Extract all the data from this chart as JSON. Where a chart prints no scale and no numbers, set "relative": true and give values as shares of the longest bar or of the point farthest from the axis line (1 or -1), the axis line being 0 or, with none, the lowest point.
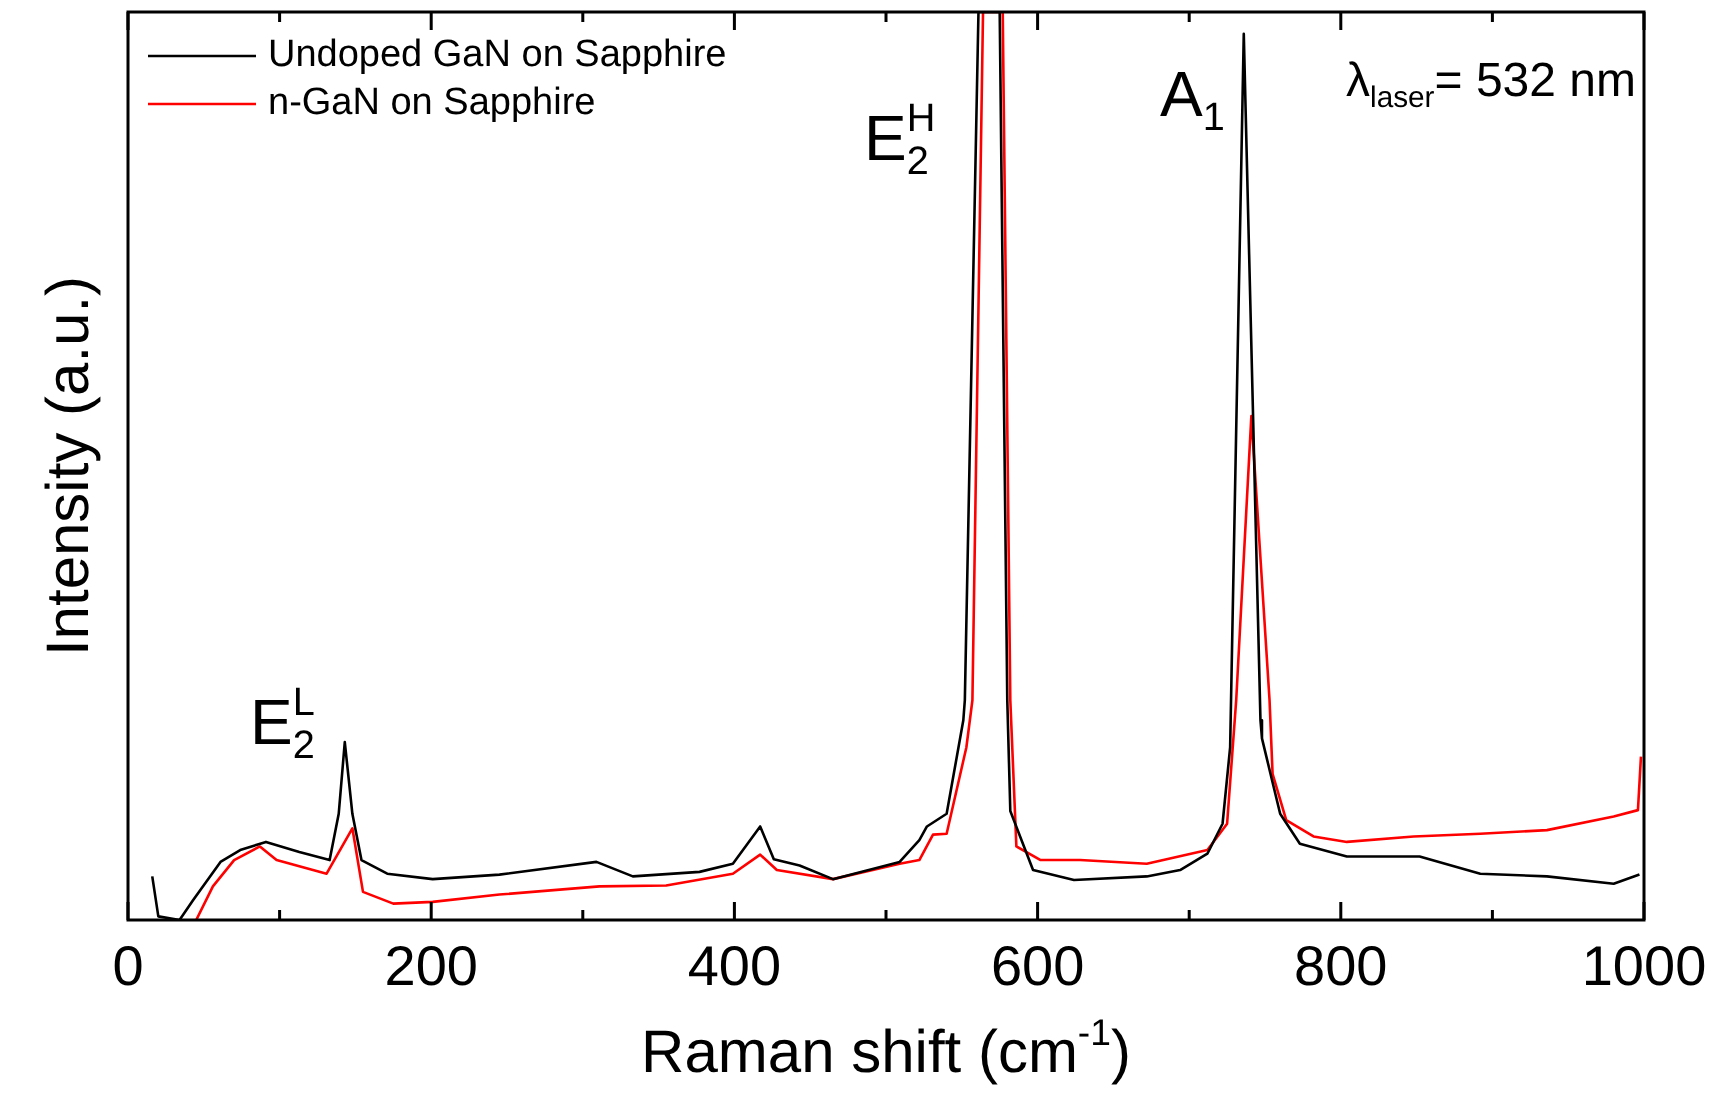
{
  "chart_data": {
    "type": "line",
    "relative": true,
    "xlabel": "Raman shift (cm$^{-1}$)",
    "ylabel": "Intensity (a.u.)",
    "xlim": [
      0,
      1000
    ],
    "xticks": [
      0,
      {
        "value": 100,
        "label": null
      },
      200,
      {
        "value": 300,
        "label": null
      },
      400,
      {
        "value": 500,
        "label": null
      },
      600,
      {
        "value": 700,
        "label": null
      },
      800,
      {
        "value": 900,
        "label": null
      },
      1000
    ],
    "grid": false,
    "legend": "top left",
    "marker": "none",
    "line_style": "solid",
    "annotations": [
      "E$_{2}$$^{L}$",
      "E$_{2}$$^{H}$",
      "A$_{1}$",
      "λ$_{laser}$= 532 nm"
    ],
    "series": [
      {
        "name": "Undoped GaN on Sapphire",
        "color": "#000000",
        "x": [
          16,
          20,
          34,
          43,
          61,
          74,
          91,
          113,
          133,
          139,
          143,
          148,
          154,
          171,
          201,
          245,
          309,
          333,
          377,
          399,
          417,
          426,
          443,
          465,
          509,
          522,
          527,
          540,
          551,
          552,
          561,
          575,
          580,
          582,
          597,
          624,
          672,
          694,
          712,
          722,
          727,
          736,
          747,
          748,
          760,
          773,
          804,
          852,
          892,
          936,
          980,
          997
        ],
        "values": [
          0.048,
          0.004,
          0,
          0.022,
          0.064,
          0.077,
          0.086,
          0.075,
          0.066,
          0.117,
          0.196,
          0.117,
          0.066,
          0.051,
          0.045,
          0.05,
          0.064,
          0.048,
          0.053,
          0.062,
          0.103,
          0.067,
          0.06,
          0.045,
          0.064,
          0.088,
          0.103,
          0.117,
          0.22,
          0.242,
          1,
          1,
          0.242,
          0.12,
          0.055,
          0.044,
          0.048,
          0.055,
          0.073,
          0.106,
          0.19,
          0.976,
          0.22,
          0.2,
          0.117,
          0.084,
          0.07,
          0.07,
          0.051,
          0.048,
          0.04,
          0.05
        ]
      },
      {
        "name": "n-GaN on Sapphire",
        "color": "#ff0000",
        "x": [
          45,
          56,
          70,
          87,
          98,
          131,
          148,
          155,
          175,
          201,
          245,
          311,
          355,
          399,
          417,
          428,
          465,
          509,
          522,
          531,
          540,
          553,
          557,
          564,
          577,
          582,
          586,
          602,
          628,
          672,
          712,
          725,
          731,
          741,
          753,
          755,
          764,
          782,
          804,
          848,
          892,
          936,
          980,
          996,
          998
        ],
        "values": [
          0,
          0.037,
          0.066,
          0.081,
          0.066,
          0.051,
          0.101,
          0.031,
          0.018,
          0.02,
          0.028,
          0.037,
          0.038,
          0.051,
          0.072,
          0.055,
          0.045,
          0.062,
          0.066,
          0.094,
          0.095,
          0.19,
          0.242,
          1,
          1,
          0.242,
          0.081,
          0.066,
          0.066,
          0.062,
          0.077,
          0.106,
          0.242,
          0.555,
          0.242,
          0.161,
          0.11,
          0.092,
          0.086,
          0.092,
          0.095,
          0.099,
          0.114,
          0.121,
          0.18
        ]
      }
    ]
  }
}
